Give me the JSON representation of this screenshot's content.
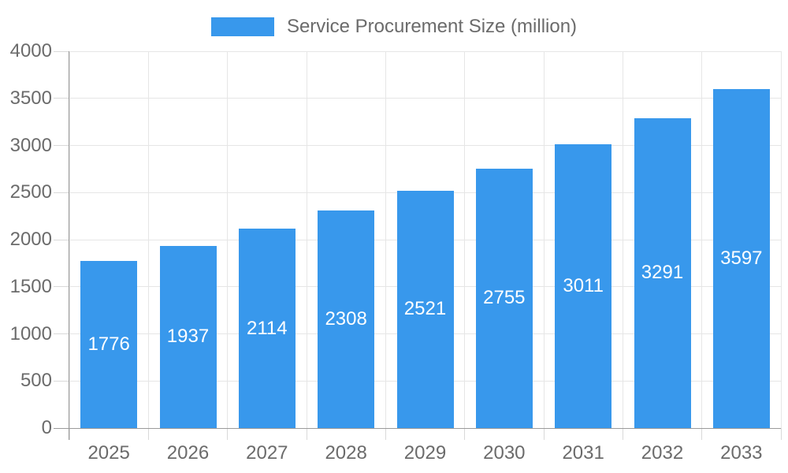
{
  "chart_data": {
    "type": "bar",
    "title": "",
    "legend": {
      "label": "Service Procurement Size (million)",
      "position": "top"
    },
    "categories": [
      "2025",
      "2026",
      "2027",
      "2028",
      "2029",
      "2030",
      "2031",
      "2032",
      "2033"
    ],
    "series": [
      {
        "name": "Service Procurement Size (million)",
        "values": [
          1776,
          1937,
          2114,
          2308,
          2521,
          2755,
          3011,
          3291,
          3597
        ]
      }
    ],
    "data_labels": [
      "1776",
      "1937",
      "2114",
      "2308",
      "2521",
      "2755",
      "3011",
      "3291",
      "3597"
    ],
    "ylim": [
      0,
      4000
    ],
    "ytick_step": 500,
    "ytick_labels": [
      "0",
      "500",
      "1000",
      "1500",
      "2000",
      "2500",
      "3000",
      "3500",
      "4000"
    ],
    "grid": true,
    "colors": {
      "bar": "#3898EC",
      "axis_text": "#6b6b6b",
      "legend_text": "#6b6b6b",
      "data_label_text": "#ffffff",
      "gridline": "#e6e6e6",
      "tick": "#d9d9d9",
      "axis_line": "#9a9a9a",
      "background": "#ffffff"
    }
  }
}
